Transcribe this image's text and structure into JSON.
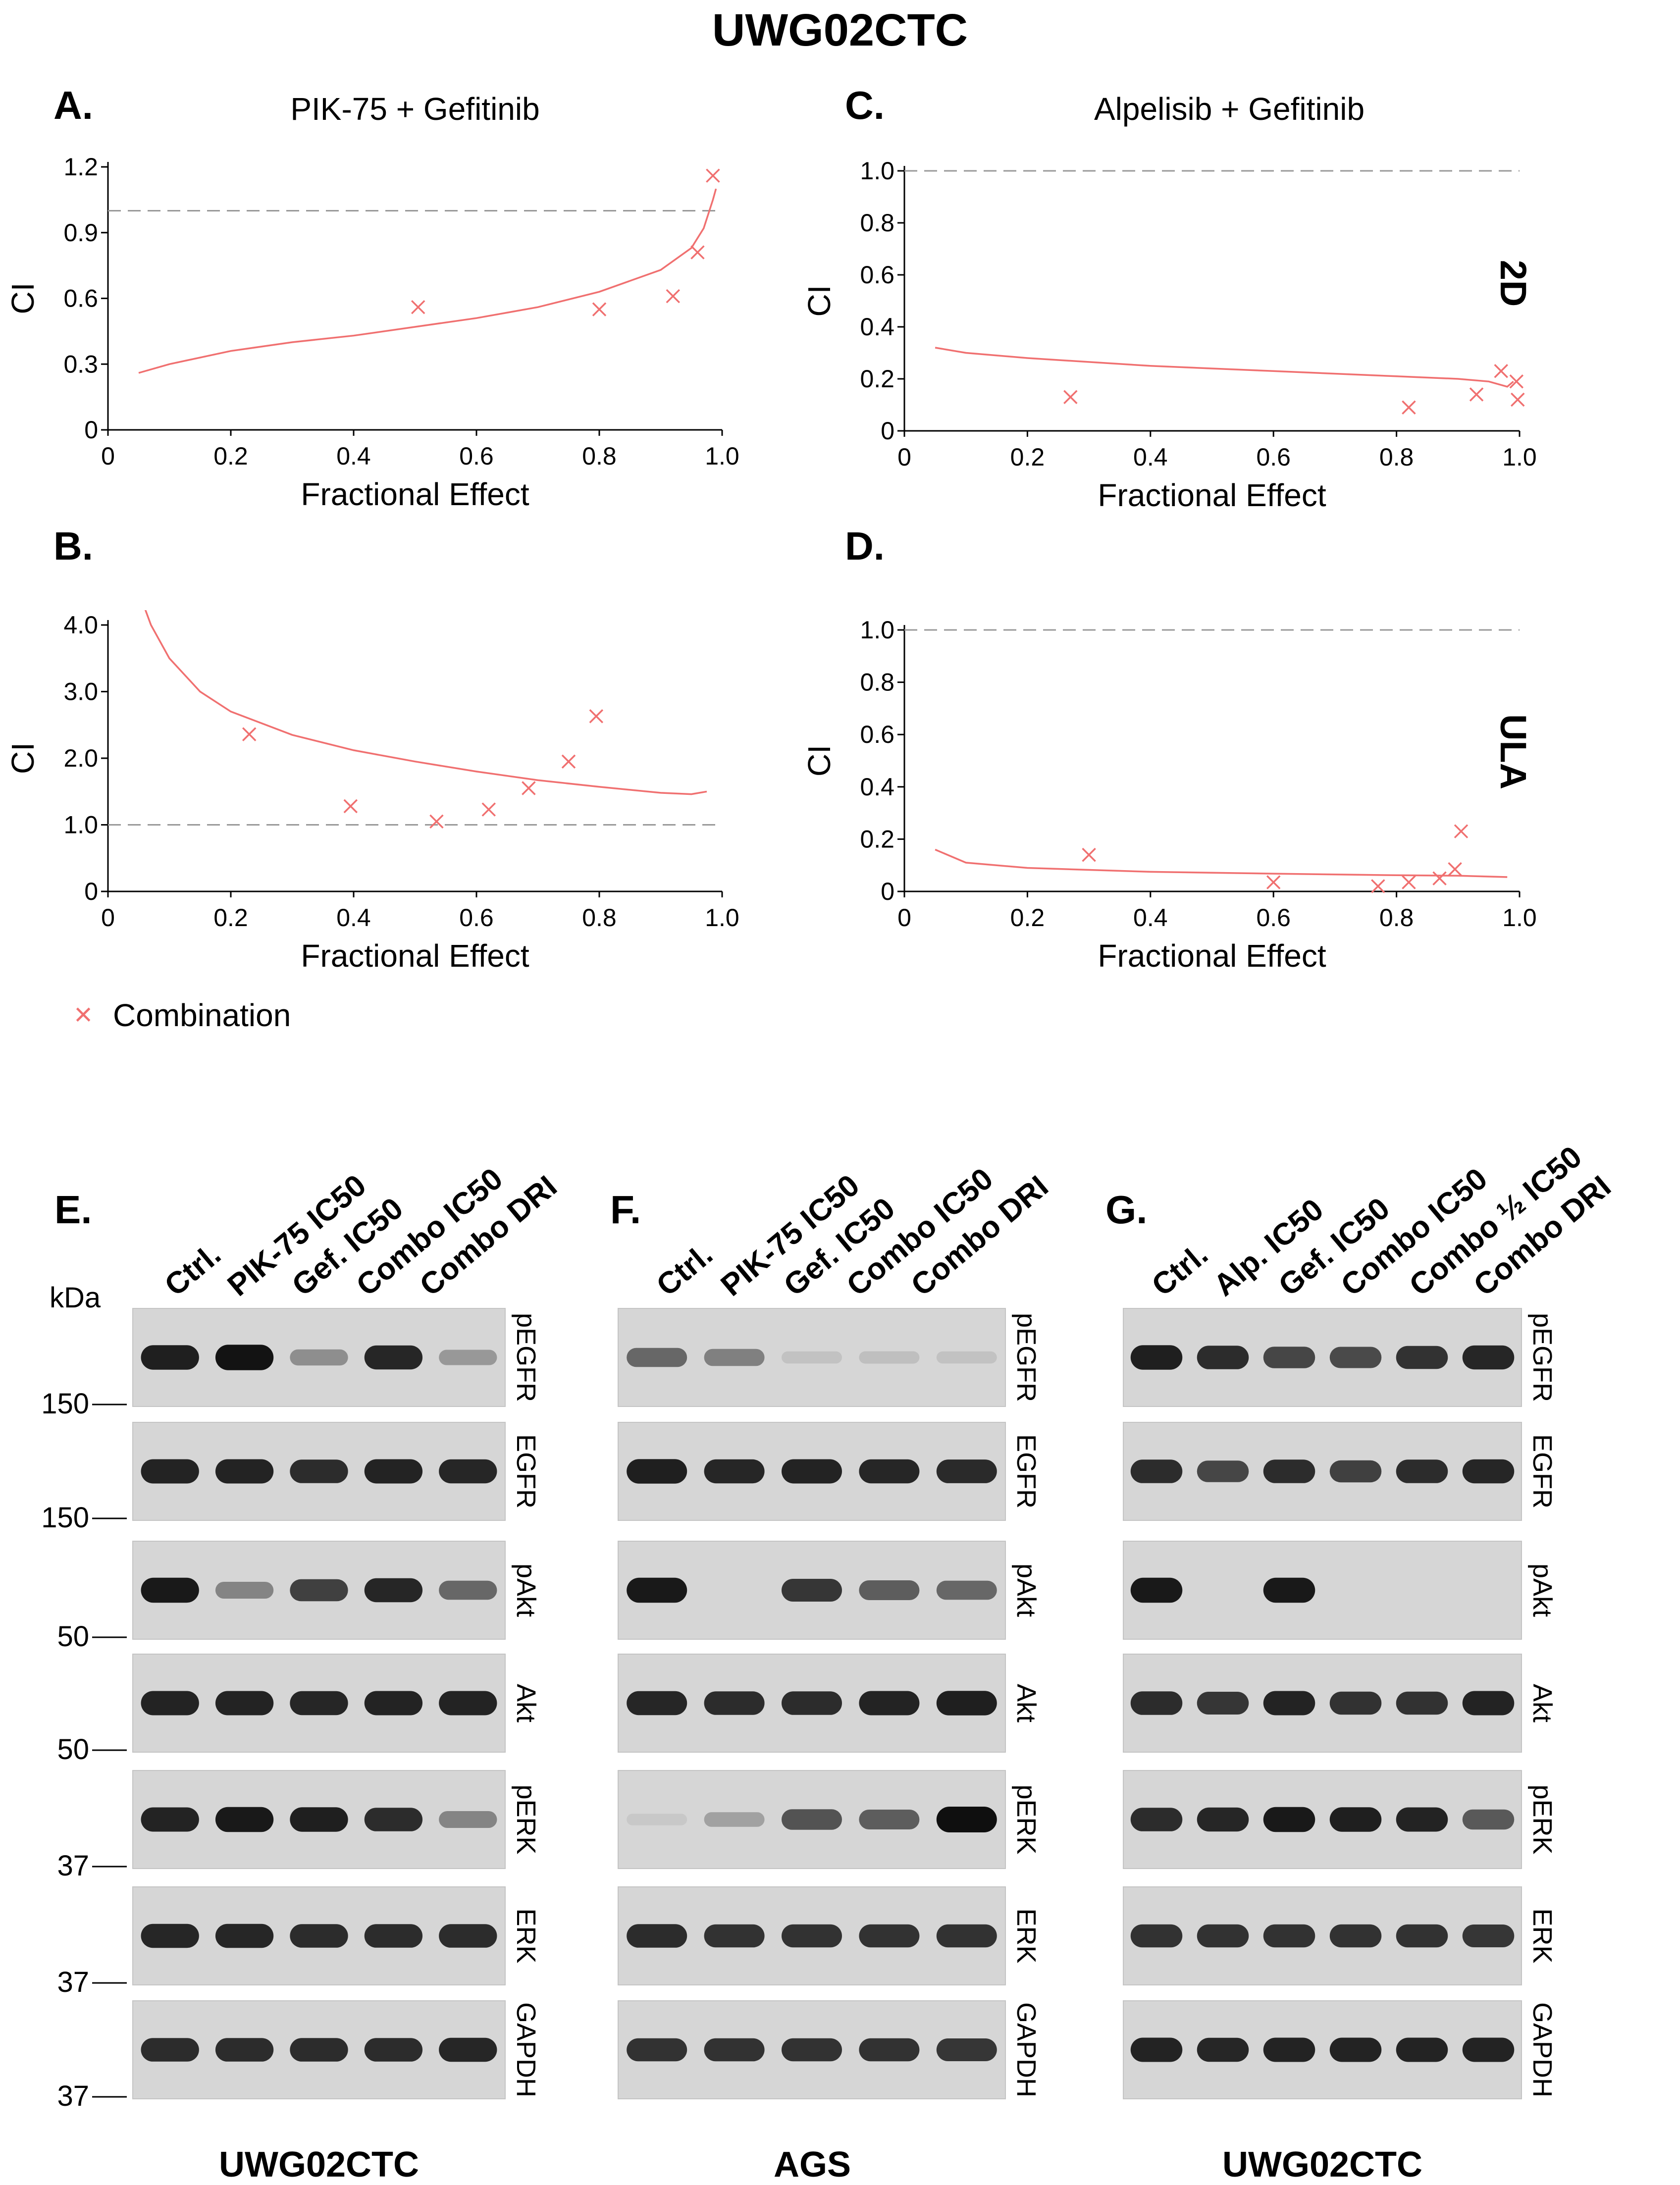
{
  "figure": {
    "title": "UWG02CTC",
    "condition_labels": [
      "2D",
      "ULA"
    ],
    "legend": {
      "label": "Combination",
      "marker": "×",
      "color": "#f07070"
    },
    "colors": {
      "series": "#f07070",
      "reference": "#999999",
      "axis": "#000000"
    }
  },
  "chart_data": [
    {
      "panel": "A.",
      "type": "scatter",
      "title": "PIK-75 + Gefitinib",
      "xlabel": "Fractional Effect",
      "ylabel": "CI",
      "xlim": [
        0,
        1.0
      ],
      "ylim": [
        0,
        1.2
      ],
      "xticks": [
        "0",
        "0.2",
        "0.4",
        "0.6",
        "0.8",
        "1.0"
      ],
      "yticks": [
        {
          "v": 0,
          "l": "0"
        },
        {
          "v": 0.3,
          "l": "0.3"
        },
        {
          "v": 0.6,
          "l": "0.6"
        },
        {
          "v": 0.9,
          "l": "0.9"
        },
        {
          "v": 1.2,
          "l": "1.2"
        }
      ],
      "reference_line": 1.0,
      "points": [
        {
          "x": 0.505,
          "y": 0.56
        },
        {
          "x": 0.8,
          "y": 0.55
        },
        {
          "x": 0.92,
          "y": 0.61
        },
        {
          "x": 0.96,
          "y": 0.81
        },
        {
          "x": 0.985,
          "y": 1.16
        }
      ],
      "fit_curve": [
        [
          0.05,
          0.26
        ],
        [
          0.1,
          0.3
        ],
        [
          0.2,
          0.36
        ],
        [
          0.3,
          0.4
        ],
        [
          0.4,
          0.43
        ],
        [
          0.5,
          0.47
        ],
        [
          0.6,
          0.51
        ],
        [
          0.7,
          0.56
        ],
        [
          0.8,
          0.63
        ],
        [
          0.9,
          0.73
        ],
        [
          0.95,
          0.83
        ],
        [
          0.97,
          0.92
        ],
        [
          0.985,
          1.05
        ],
        [
          0.99,
          1.1
        ]
      ]
    },
    {
      "panel": "B.",
      "type": "scatter",
      "title": "",
      "xlabel": "Fractional Effect",
      "ylabel": "CI",
      "xlim": [
        0,
        1.0
      ],
      "ylim": [
        0,
        4.0
      ],
      "xticks": [
        "0",
        "0.2",
        "0.4",
        "0.6",
        "0.8",
        "1.0"
      ],
      "yticks": [
        {
          "v": 0,
          "l": "0"
        },
        {
          "v": 1.0,
          "l": "1.0"
        },
        {
          "v": 2.0,
          "l": "2.0"
        },
        {
          "v": 3.0,
          "l": "3.0"
        },
        {
          "v": 4.0,
          "l": "4.0"
        }
      ],
      "reference_line": 1.0,
      "points": [
        {
          "x": 0.23,
          "y": 2.36
        },
        {
          "x": 0.395,
          "y": 1.28
        },
        {
          "x": 0.535,
          "y": 1.05
        },
        {
          "x": 0.62,
          "y": 1.23
        },
        {
          "x": 0.685,
          "y": 1.55
        },
        {
          "x": 0.75,
          "y": 1.95
        },
        {
          "x": 0.795,
          "y": 2.63
        }
      ],
      "fit_curve": [
        [
          0.05,
          4.5
        ],
        [
          0.07,
          4.0
        ],
        [
          0.1,
          3.5
        ],
        [
          0.15,
          3.0
        ],
        [
          0.2,
          2.7
        ],
        [
          0.3,
          2.35
        ],
        [
          0.4,
          2.12
        ],
        [
          0.5,
          1.95
        ],
        [
          0.6,
          1.8
        ],
        [
          0.7,
          1.67
        ],
        [
          0.8,
          1.57
        ],
        [
          0.9,
          1.48
        ],
        [
          0.95,
          1.46
        ],
        [
          0.975,
          1.5
        ]
      ]
    },
    {
      "panel": "C.",
      "type": "scatter",
      "title": "Alpelisib + Gefitinib",
      "xlabel": "Fractional Effect",
      "ylabel": "CI",
      "xlim": [
        0,
        1.0
      ],
      "ylim": [
        0,
        1.0
      ],
      "xticks": [
        "0",
        "0.2",
        "0.4",
        "0.6",
        "0.8",
        "1.0"
      ],
      "yticks": [
        {
          "v": 0,
          "l": "0"
        },
        {
          "v": 0.2,
          "l": "0.2"
        },
        {
          "v": 0.4,
          "l": "0.4"
        },
        {
          "v": 0.6,
          "l": "0.6"
        },
        {
          "v": 0.8,
          "l": "0.8"
        },
        {
          "v": 1.0,
          "l": "1.0"
        }
      ],
      "reference_line": 1.0,
      "points": [
        {
          "x": 0.27,
          "y": 0.13
        },
        {
          "x": 0.82,
          "y": 0.09
        },
        {
          "x": 0.93,
          "y": 0.14
        },
        {
          "x": 0.97,
          "y": 0.23
        },
        {
          "x": 0.995,
          "y": 0.19
        },
        {
          "x": 0.997,
          "y": 0.12
        }
      ],
      "fit_curve": [
        [
          0.05,
          0.32
        ],
        [
          0.1,
          0.3
        ],
        [
          0.2,
          0.28
        ],
        [
          0.4,
          0.25
        ],
        [
          0.6,
          0.23
        ],
        [
          0.8,
          0.21
        ],
        [
          0.9,
          0.2
        ],
        [
          0.95,
          0.19
        ],
        [
          0.98,
          0.17
        ],
        [
          0.99,
          0.19
        ]
      ]
    },
    {
      "panel": "D.",
      "type": "scatter",
      "title": "",
      "xlabel": "Fractional Effect",
      "ylabel": "CI",
      "xlim": [
        0,
        1.0
      ],
      "ylim": [
        0,
        1.0
      ],
      "xticks": [
        "0",
        "0.2",
        "0.4",
        "0.6",
        "0.8",
        "1.0"
      ],
      "yticks": [
        {
          "v": 0,
          "l": "0"
        },
        {
          "v": 0.2,
          "l": "0.2"
        },
        {
          "v": 0.4,
          "l": "0.4"
        },
        {
          "v": 0.6,
          "l": "0.6"
        },
        {
          "v": 0.8,
          "l": "0.8"
        },
        {
          "v": 1.0,
          "l": "1.0"
        }
      ],
      "reference_line": 1.0,
      "points": [
        {
          "x": 0.3,
          "y": 0.14
        },
        {
          "x": 0.6,
          "y": 0.035
        },
        {
          "x": 0.77,
          "y": 0.02
        },
        {
          "x": 0.82,
          "y": 0.035
        },
        {
          "x": 0.87,
          "y": 0.05
        },
        {
          "x": 0.895,
          "y": 0.085
        },
        {
          "x": 0.905,
          "y": 0.23
        }
      ],
      "fit_curve": [
        [
          0.05,
          0.16
        ],
        [
          0.1,
          0.11
        ],
        [
          0.2,
          0.09
        ],
        [
          0.4,
          0.075
        ],
        [
          0.6,
          0.068
        ],
        [
          0.8,
          0.062
        ],
        [
          0.9,
          0.06
        ],
        [
          0.98,
          0.055
        ]
      ]
    }
  ],
  "blots": [
    {
      "panel": "E.",
      "cell_line": "UWG02CTC",
      "kda_header": "kDa",
      "lanes": [
        "Ctrl.",
        "PIK-75 IC50",
        "Gef. IC50",
        "Combo IC50",
        "Combo DRI"
      ],
      "rows": [
        {
          "protein": "pEGFR",
          "kda": "150",
          "bands": [
            0.92,
            0.98,
            0.35,
            0.88,
            0.3
          ]
        },
        {
          "protein": "EGFR",
          "kda": "150",
          "bands": [
            0.9,
            0.9,
            0.85,
            0.9,
            0.88
          ]
        },
        {
          "protein": "pAkt",
          "kda": "50",
          "bands": [
            0.95,
            0.4,
            0.75,
            0.88,
            0.55
          ]
        },
        {
          "protein": "Akt",
          "kda": "50",
          "bands": [
            0.9,
            0.9,
            0.88,
            0.9,
            0.9
          ]
        },
        {
          "protein": "pERK",
          "kda": "37",
          "bands": [
            0.9,
            0.95,
            0.92,
            0.85,
            0.4
          ]
        },
        {
          "protein": "ERK",
          "kda": "37",
          "bands": [
            0.88,
            0.88,
            0.85,
            0.85,
            0.85
          ]
        },
        {
          "protein": "GAPDH",
          "kda": "37",
          "bands": [
            0.85,
            0.85,
            0.85,
            0.85,
            0.88
          ]
        }
      ]
    },
    {
      "panel": "F.",
      "cell_line": "AGS",
      "lanes": [
        "Ctrl.",
        "PIK-75 IC50",
        "Gef. IC50",
        "Combo IC50",
        "Combo DRI"
      ],
      "rows": [
        {
          "protein": "pEGFR",
          "bands": [
            0.55,
            0.42,
            0.08,
            0.1,
            0.08
          ]
        },
        {
          "protein": "EGFR",
          "bands": [
            0.92,
            0.88,
            0.9,
            0.88,
            0.86
          ]
        },
        {
          "protein": "pAkt",
          "bands": [
            0.95,
            0.0,
            0.8,
            0.6,
            0.55
          ]
        },
        {
          "protein": "Akt",
          "bands": [
            0.88,
            0.85,
            0.85,
            0.9,
            0.92
          ]
        },
        {
          "protein": "pERK",
          "bands": [
            0.05,
            0.25,
            0.65,
            0.6,
            1.0
          ]
        },
        {
          "protein": "ERK",
          "bands": [
            0.85,
            0.82,
            0.82,
            0.82,
            0.82
          ]
        },
        {
          "protein": "GAPDH",
          "bands": [
            0.82,
            0.82,
            0.82,
            0.82,
            0.8
          ]
        }
      ]
    },
    {
      "panel": "G.",
      "cell_line": "UWG02CTC",
      "lanes": [
        "Ctrl.",
        "Alp. IC50",
        "Gef. IC50",
        "Combo IC50",
        "Combo ½ IC50",
        "Combo DRI"
      ],
      "rows": [
        {
          "protein": "pEGFR",
          "bands": [
            0.92,
            0.85,
            0.72,
            0.7,
            0.82,
            0.88
          ]
        },
        {
          "protein": "EGFR",
          "bands": [
            0.85,
            0.72,
            0.85,
            0.75,
            0.85,
            0.88
          ]
        },
        {
          "protein": "pAkt",
          "bands": [
            0.95,
            0.0,
            0.95,
            0.0,
            0.0,
            0.0
          ]
        },
        {
          "protein": "Akt",
          "bands": [
            0.85,
            0.8,
            0.9,
            0.82,
            0.82,
            0.9
          ]
        },
        {
          "protein": "pERK",
          "bands": [
            0.85,
            0.88,
            0.95,
            0.92,
            0.9,
            0.62
          ]
        },
        {
          "protein": "ERK",
          "bands": [
            0.82,
            0.82,
            0.82,
            0.82,
            0.82,
            0.8
          ]
        },
        {
          "protein": "GAPDH",
          "bands": [
            0.9,
            0.88,
            0.9,
            0.9,
            0.9,
            0.9
          ]
        }
      ]
    }
  ]
}
